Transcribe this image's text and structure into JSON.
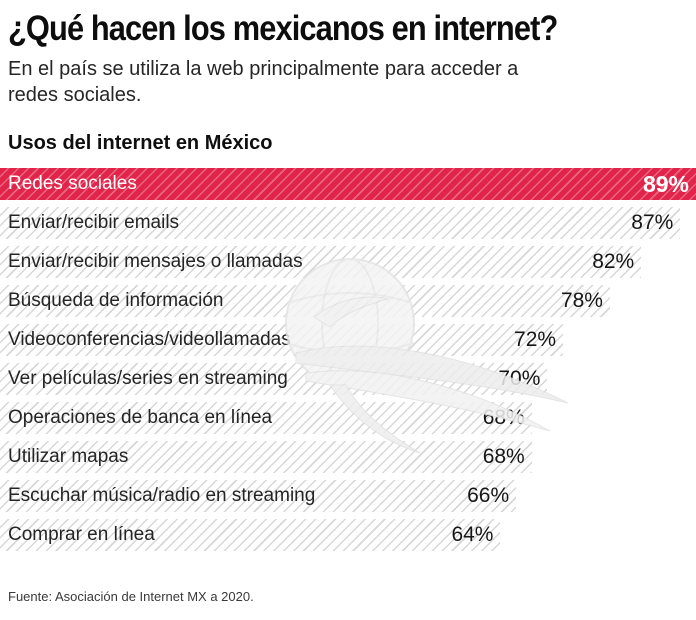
{
  "header": {
    "title": "¿Qué hacen los mexicanos en internet?",
    "subtitle": "En el país se utiliza la web principalmente para acceder a redes sociales."
  },
  "section": {
    "title": "Usos del internet en México"
  },
  "chart_data": {
    "type": "bar",
    "orientation": "horizontal",
    "title": "Usos del internet en México",
    "unit": "%",
    "categories": [
      "Redes sociales",
      "Enviar/recibir emails",
      "Enviar/recibir mensajes o llamadas",
      "Búsqueda de información",
      "Videoconferencias/videollamadas",
      "Ver películas/series en streaming",
      "Operaciones de banca en línea",
      "Utilizar mapas",
      "Escuchar música/radio en streaming",
      "Comprar en línea"
    ],
    "values": [
      89,
      87,
      82,
      78,
      72,
      70,
      68,
      68,
      66,
      64
    ],
    "value_labels": [
      "89%",
      "87%",
      "82%",
      "78%",
      "72%",
      "70%",
      "68%",
      "68%",
      "66%",
      "64%"
    ],
    "xlim": [
      0,
      89
    ],
    "grid": "off",
    "legend": "none",
    "bar_style": "diagonal-hatch",
    "highlight_index": 0,
    "colors": {
      "highlight_bar": "#e0244a",
      "highlight_text": "#ffffff",
      "hatch_line": "#d7d7d7",
      "label_text": "#242424",
      "value_text": "#161616"
    }
  },
  "footer": {
    "source": "Fuente: Asociación de Internet MX a 2020."
  },
  "watermark": {
    "name": "eagle-globe-logo"
  }
}
